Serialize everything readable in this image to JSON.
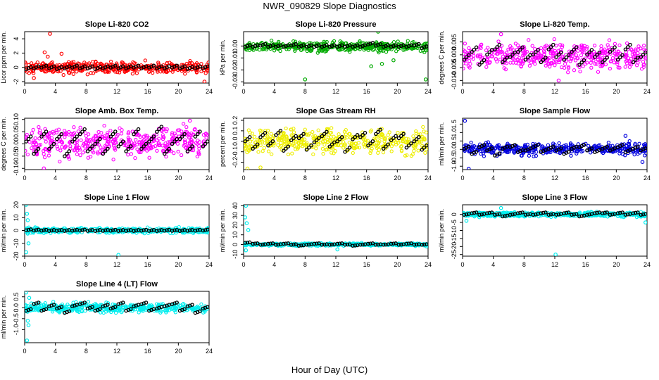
{
  "figure": {
    "title": "NWR_090829  Slope Diagnostics",
    "xlabel": "Hour of Day (UTC)"
  },
  "chart_data": [
    {
      "type": "scatter",
      "title": "Slope Li-820 CO2",
      "ylabel": "Licor ppm per min.",
      "color": "#ff0000",
      "xlim": [
        0,
        24
      ],
      "xticks": [
        0,
        4,
        8,
        12,
        16,
        20,
        24
      ],
      "ylim": [
        -2.2,
        5
      ],
      "yticks": [
        -2,
        0,
        2,
        4
      ],
      "yticklabels": [
        "-2",
        "0",
        "2",
        "4"
      ],
      "scatter_range": [
        -1.2,
        1.2
      ],
      "outliers": [
        {
          "x": 3.3,
          "y": 4.7
        },
        {
          "x": 2.6,
          "y": 2.1
        },
        {
          "x": 4.8,
          "y": 1.9
        },
        {
          "x": 3.0,
          "y": 1.5
        },
        {
          "x": 1.2,
          "y": -1.5
        },
        {
          "x": 23.4,
          "y": -2.0
        }
      ],
      "hourly": {
        "hours": [
          0.5,
          1.5,
          2.5,
          3.5,
          4.5,
          5.5,
          6.5,
          7.5,
          8.5,
          9.5,
          10.5,
          11.5,
          12.5,
          13.5,
          14.5,
          15.5,
          16.5,
          17.5,
          18.5,
          19.5,
          20.5,
          21.5,
          22.5,
          23.5
        ],
        "values": [
          -0.1,
          0.0,
          0.1,
          0.0,
          -0.1,
          0.0,
          0.1,
          0.0,
          0.0,
          -0.1,
          0.0,
          0.1,
          0.0,
          0.0,
          0.1,
          0.0,
          0.1,
          0.0,
          0.0,
          0.1,
          0.0,
          -0.1,
          0.0,
          0.0
        ]
      }
    },
    {
      "type": "scatter",
      "title": "Slope Li-820 Pressure",
      "ylabel": "kPa per min.",
      "color": "#00aa00",
      "xlim": [
        0,
        24
      ],
      "xticks": [
        0,
        4,
        8,
        12,
        16,
        20,
        24
      ],
      "ylim": [
        -0.031,
        0.012
      ],
      "yticks": [
        -0.03,
        -0.02,
        -0.01,
        0.0
      ],
      "yticklabels": [
        "-0.03",
        "-0.02",
        "-0.01",
        "0.00"
      ],
      "scatter_range": [
        -0.006,
        0.005
      ],
      "outliers": [
        {
          "x": 17.5,
          "y": 0.012
        },
        {
          "x": 8.0,
          "y": -0.028
        },
        {
          "x": 23.7,
          "y": -0.028
        },
        {
          "x": 16.6,
          "y": -0.017
        },
        {
          "x": 18.0,
          "y": -0.015
        },
        {
          "x": 19.5,
          "y": -0.012
        }
      ],
      "hourly": {
        "hours": [
          0.5,
          1.5,
          2.5,
          3.5,
          4.5,
          5.5,
          6.5,
          7.5,
          8.5,
          9.5,
          10.5,
          11.5,
          12.5,
          13.5,
          14.5,
          15.5,
          16.5,
          17.5,
          18.5,
          19.5,
          20.5,
          21.5,
          22.5,
          23.5
        ],
        "values": [
          0.0,
          0.0,
          0.001,
          0.0,
          0.0,
          0.0,
          0.001,
          0.0,
          0.0,
          0.0,
          0.0,
          0.0,
          0.0,
          0.0,
          0.0,
          0.0,
          0.002,
          0.001,
          0.0,
          0.0,
          0.0,
          0.0,
          0.001,
          -0.001
        ]
      }
    },
    {
      "type": "scatter",
      "title": "Slope Li-820 Temp.",
      "ylabel": "degrees C per min.",
      "color": "#ff00ff",
      "xlim": [
        0,
        24
      ],
      "xticks": [
        0,
        4,
        8,
        12,
        16,
        20,
        24
      ],
      "ylim": [
        -0.011,
        0.009
      ],
      "yticks": [
        -0.01,
        -0.005,
        0.0,
        0.005
      ],
      "yticklabels": [
        "-0.010",
        "-0.005",
        "0.000",
        "0.005"
      ],
      "scatter_range": [
        -0.008,
        0.007
      ],
      "outliers": [
        {
          "x": 5.0,
          "y": 0.008
        },
        {
          "x": 12.5,
          "y": -0.01
        }
      ],
      "hourly": {
        "hours": [
          0.5,
          1.5,
          2.5,
          3.5,
          4.5,
          5.5,
          6.5,
          7.5,
          8.5,
          9.5,
          10.5,
          11.5,
          12.5,
          13.5,
          14.5,
          15.5,
          16.5,
          17.5,
          18.5,
          19.5,
          20.5,
          21.5,
          22.5,
          23.5
        ],
        "values": [
          -0.001,
          0.002,
          -0.003,
          0.001,
          0.003,
          -0.002,
          0.0,
          0.002,
          -0.001,
          0.001,
          -0.002,
          0.003,
          0.0,
          -0.001,
          0.002,
          -0.003,
          0.001,
          0.0,
          -0.002,
          0.002,
          -0.001,
          0.003,
          -0.002,
          0.0
        ]
      }
    },
    {
      "type": "scatter",
      "title": "Slope Amb. Box Temp.",
      "ylabel": "degrees C per min.",
      "color": "#ff00ff",
      "xlim": [
        0,
        24
      ],
      "xticks": [
        0,
        4,
        8,
        12,
        16,
        20,
        24
      ],
      "ylim": [
        -0.105,
        0.105
      ],
      "yticks": [
        -0.1,
        -0.05,
        0.0,
        0.05,
        0.1
      ],
      "yticklabels": [
        "-0.10",
        "-0.05",
        "0.00",
        "0.05",
        "0.10"
      ],
      "scatter_range": [
        -0.08,
        0.09
      ],
      "outliers": [
        {
          "x": 2.5,
          "y": -0.1
        },
        {
          "x": 21.5,
          "y": 0.095
        }
      ],
      "hourly": {
        "hours": [
          0.5,
          1.5,
          2.5,
          3.5,
          4.5,
          5.5,
          6.5,
          7.5,
          8.5,
          9.5,
          10.5,
          11.5,
          12.5,
          13.5,
          14.5,
          15.5,
          16.5,
          17.5,
          18.5,
          19.5,
          20.5,
          21.5,
          22.5,
          23.5
        ],
        "values": [
          0.02,
          -0.03,
          0.04,
          -0.01,
          0.03,
          -0.04,
          0.02,
          0.05,
          -0.02,
          0.01,
          -0.03,
          0.04,
          0.0,
          -0.02,
          0.05,
          -0.01,
          0.02,
          0.06,
          -0.03,
          0.01,
          0.03,
          -0.02,
          0.04,
          0.0
        ]
      }
    },
    {
      "type": "scatter",
      "title": "Slope Gas Stream RH",
      "ylabel": "percent per min.",
      "color": "#eeee00",
      "xlim": [
        0,
        24
      ],
      "xticks": [
        0,
        4,
        8,
        12,
        16,
        20,
        24
      ],
      "ylim": [
        -0.27,
        0.22
      ],
      "yticks": [
        -0.2,
        -0.1,
        0.0,
        0.1,
        0.2
      ],
      "yticklabels": [
        "-0.2",
        "-0.1",
        "0.0",
        "0.1",
        "0.2"
      ],
      "scatter_range": [
        -0.17,
        0.17
      ],
      "outliers": [
        {
          "x": 0.5,
          "y": -0.26
        },
        {
          "x": 2.2,
          "y": -0.25
        }
      ],
      "hourly": {
        "hours": [
          0.5,
          1.5,
          2.5,
          3.5,
          4.5,
          5.5,
          6.5,
          7.5,
          8.5,
          9.5,
          10.5,
          11.5,
          12.5,
          13.5,
          14.5,
          15.5,
          16.5,
          17.5,
          18.5,
          19.5,
          20.5,
          21.5,
          22.5,
          23.5
        ],
        "values": [
          0.02,
          -0.05,
          0.06,
          -0.02,
          0.08,
          -0.07,
          0.03,
          0.05,
          -0.06,
          0.01,
          0.07,
          -0.03,
          0.02,
          -0.08,
          0.04,
          0.06,
          -0.02,
          0.09,
          -0.05,
          0.03,
          0.05,
          -0.04,
          0.02,
          -0.06
        ]
      }
    },
    {
      "type": "scatter",
      "title": "Slope Sample Flow",
      "ylabel": "ml/min per min.",
      "color": "#0000dd",
      "xlim": [
        0,
        24
      ],
      "xticks": [
        0,
        4,
        8,
        12,
        16,
        20,
        24
      ],
      "ylim": [
        -1.2,
        1.85
      ],
      "yticks": [
        -1.0,
        -0.5,
        0.0,
        0.5,
        1.0,
        1.5
      ],
      "yticklabels": [
        "-1.0",
        "-0.5",
        "0.0",
        "0.5",
        "1.0",
        "1.5"
      ],
      "scatter_range": [
        -0.5,
        0.55
      ],
      "outliers": [
        {
          "x": 0.3,
          "y": 1.7
        },
        {
          "x": 0.8,
          "y": -1.15
        },
        {
          "x": 21.2,
          "y": 0.8
        },
        {
          "x": 23.4,
          "y": -0.75
        }
      ],
      "hourly": {
        "hours": [
          0.5,
          1.5,
          2.5,
          3.5,
          4.5,
          5.5,
          6.5,
          7.5,
          8.5,
          9.5,
          10.5,
          11.5,
          12.5,
          13.5,
          14.5,
          15.5,
          16.5,
          17.5,
          18.5,
          19.5,
          20.5,
          21.5,
          22.5,
          23.5
        ],
        "values": [
          0.1,
          -0.2,
          0.2,
          0.0,
          -0.3,
          0.1,
          0.2,
          -0.1,
          0.0,
          0.2,
          -0.1,
          0.1,
          0.0,
          -0.2,
          0.1,
          0.2,
          0.0,
          -0.1,
          0.1,
          0.0,
          0.2,
          -0.1,
          0.1,
          0.0
        ]
      }
    },
    {
      "type": "scatter",
      "title": "Slope Line 1 Flow",
      "ylabel": "ml/min per min.",
      "color": "#00eeee",
      "xlim": [
        0,
        24
      ],
      "xticks": [
        0,
        4,
        8,
        12,
        16,
        20,
        24
      ],
      "ylim": [
        -20,
        20
      ],
      "yticks": [
        -20,
        -10,
        0,
        10,
        20
      ],
      "yticklabels": [
        "-20",
        "-10",
        "0",
        "10",
        "20"
      ],
      "scatter_range": [
        -3,
        3
      ],
      "outliers": [
        {
          "x": 0.2,
          "y": 20
        },
        {
          "x": 0.3,
          "y": 13
        },
        {
          "x": 0.2,
          "y": -17
        },
        {
          "x": 0.5,
          "y": -10
        },
        {
          "x": 0.4,
          "y": 8
        },
        {
          "x": 12.2,
          "y": -19
        }
      ],
      "hourly": {
        "hours": [
          0.5,
          1.5,
          2.5,
          3.5,
          4.5,
          5.5,
          6.5,
          7.5,
          8.5,
          9.5,
          10.5,
          11.5,
          12.5,
          13.5,
          14.5,
          15.5,
          16.5,
          17.5,
          18.5,
          19.5,
          20.5,
          21.5,
          22.5,
          23.5
        ],
        "values": [
          0.5,
          0.3,
          0.2,
          0.0,
          0.1,
          0.0,
          0.2,
          0.3,
          0.1,
          0.0,
          0.1,
          0.2,
          0.0,
          0.1,
          0.0,
          0.2,
          0.1,
          0.0,
          0.2,
          0.1,
          0.0,
          0.1,
          0.2,
          0.3
        ]
      }
    },
    {
      "type": "scatter",
      "title": "Slope Line 2 Flow",
      "ylabel": "ml/min per min.",
      "color": "#00eeee",
      "xlim": [
        0,
        24
      ],
      "xticks": [
        0,
        4,
        8,
        12,
        16,
        20,
        24
      ],
      "ylim": [
        -12,
        41
      ],
      "yticks": [
        -10,
        0,
        10,
        20,
        30,
        40
      ],
      "yticklabels": [
        "-10",
        "0",
        "10",
        "20",
        "30",
        "40"
      ],
      "scatter_range": [
        -2,
        2
      ],
      "outliers": [
        {
          "x": 0.3,
          "y": 40
        },
        {
          "x": 0.2,
          "y": 28
        },
        {
          "x": 0.4,
          "y": 22
        },
        {
          "x": 0.6,
          "y": 15
        },
        {
          "x": 0.3,
          "y": -6
        },
        {
          "x": 12.2,
          "y": -5
        },
        {
          "x": 23.8,
          "y": -2
        }
      ],
      "hourly": {
        "hours": [
          0.5,
          1.5,
          2.5,
          3.5,
          4.5,
          5.5,
          6.5,
          7.5,
          8.5,
          9.5,
          10.5,
          11.5,
          12.5,
          13.5,
          14.5,
          15.5,
          16.5,
          17.5,
          18.5,
          19.5,
          20.5,
          21.5,
          22.5,
          23.5
        ],
        "values": [
          2,
          1,
          0,
          1,
          0,
          1,
          0,
          -1,
          0,
          1,
          0,
          0,
          1,
          0,
          -1,
          0,
          1,
          0,
          0,
          1,
          0,
          1,
          0,
          0
        ]
      }
    },
    {
      "type": "scatter",
      "title": "Slope Line 3 Flow",
      "ylabel": "ml/min per min.",
      "color": "#00eeee",
      "xlim": [
        0,
        24
      ],
      "xticks": [
        0,
        4,
        8,
        12,
        16,
        20,
        24
      ],
      "ylim": [
        -26,
        6
      ],
      "yticks": [
        -25,
        -20,
        -15,
        -10,
        -5,
        0
      ],
      "yticklabels": [
        "-25",
        "-20",
        "-15",
        "-10",
        "-5",
        "0"
      ],
      "scatter_range": [
        -2,
        2
      ],
      "outliers": [
        {
          "x": 5.0,
          "y": 4
        },
        {
          "x": 12.1,
          "y": -25
        },
        {
          "x": 23.8,
          "y": -5
        },
        {
          "x": 0.5,
          "y": -4
        }
      ],
      "hourly": {
        "hours": [
          0.5,
          1.5,
          2.5,
          3.5,
          4.5,
          5.5,
          6.5,
          7.5,
          8.5,
          9.5,
          10.5,
          11.5,
          12.5,
          13.5,
          14.5,
          15.5,
          16.5,
          17.5,
          18.5,
          19.5,
          20.5,
          21.5,
          22.5,
          23.5
        ],
        "values": [
          0,
          1,
          0,
          1,
          0,
          -1,
          0,
          1,
          0,
          0,
          1,
          0,
          0,
          1,
          0,
          -1,
          0,
          1,
          1,
          0,
          1,
          0,
          1,
          0
        ]
      }
    },
    {
      "type": "scatter",
      "title": "Slope Line 4 (LT) Flow",
      "ylabel": "ml/min per min.",
      "color": "#00eeee",
      "xlim": [
        0,
        24
      ],
      "xticks": [
        0,
        4,
        8,
        12,
        16,
        20,
        24
      ],
      "ylim": [
        -1.6,
        0.75
      ],
      "yticks": [
        -1.0,
        -0.5,
        0.0,
        0.5
      ],
      "yticklabels": [
        "-1.0",
        "-0.5",
        "0.0",
        "0.5"
      ],
      "scatter_range": [
        -0.3,
        0.3
      ],
      "outliers": [
        {
          "x": 0.2,
          "y": 0.7
        },
        {
          "x": 0.3,
          "y": -1.5
        },
        {
          "x": 0.5,
          "y": -0.8
        },
        {
          "x": 0.4,
          "y": -0.6
        },
        {
          "x": 0.6,
          "y": 0.45
        }
      ],
      "hourly": {
        "hours": [
          0.5,
          1.5,
          2.5,
          3.5,
          4.5,
          5.5,
          6.5,
          7.5,
          8.5,
          9.5,
          10.5,
          11.5,
          12.5,
          13.5,
          14.5,
          15.5,
          16.5,
          17.5,
          18.5,
          19.5,
          20.5,
          21.5,
          22.5,
          23.5
        ],
        "values": [
          -0.1,
          0.2,
          -0.1,
          0.1,
          0.0,
          -0.2,
          0.1,
          0.2,
          0.0,
          -0.1,
          0.1,
          0.0,
          0.2,
          -0.1,
          0.1,
          0.2,
          -0.1,
          0.0,
          0.1,
          0.2,
          -0.1,
          0.1,
          -0.2,
          0.0
        ]
      }
    }
  ]
}
